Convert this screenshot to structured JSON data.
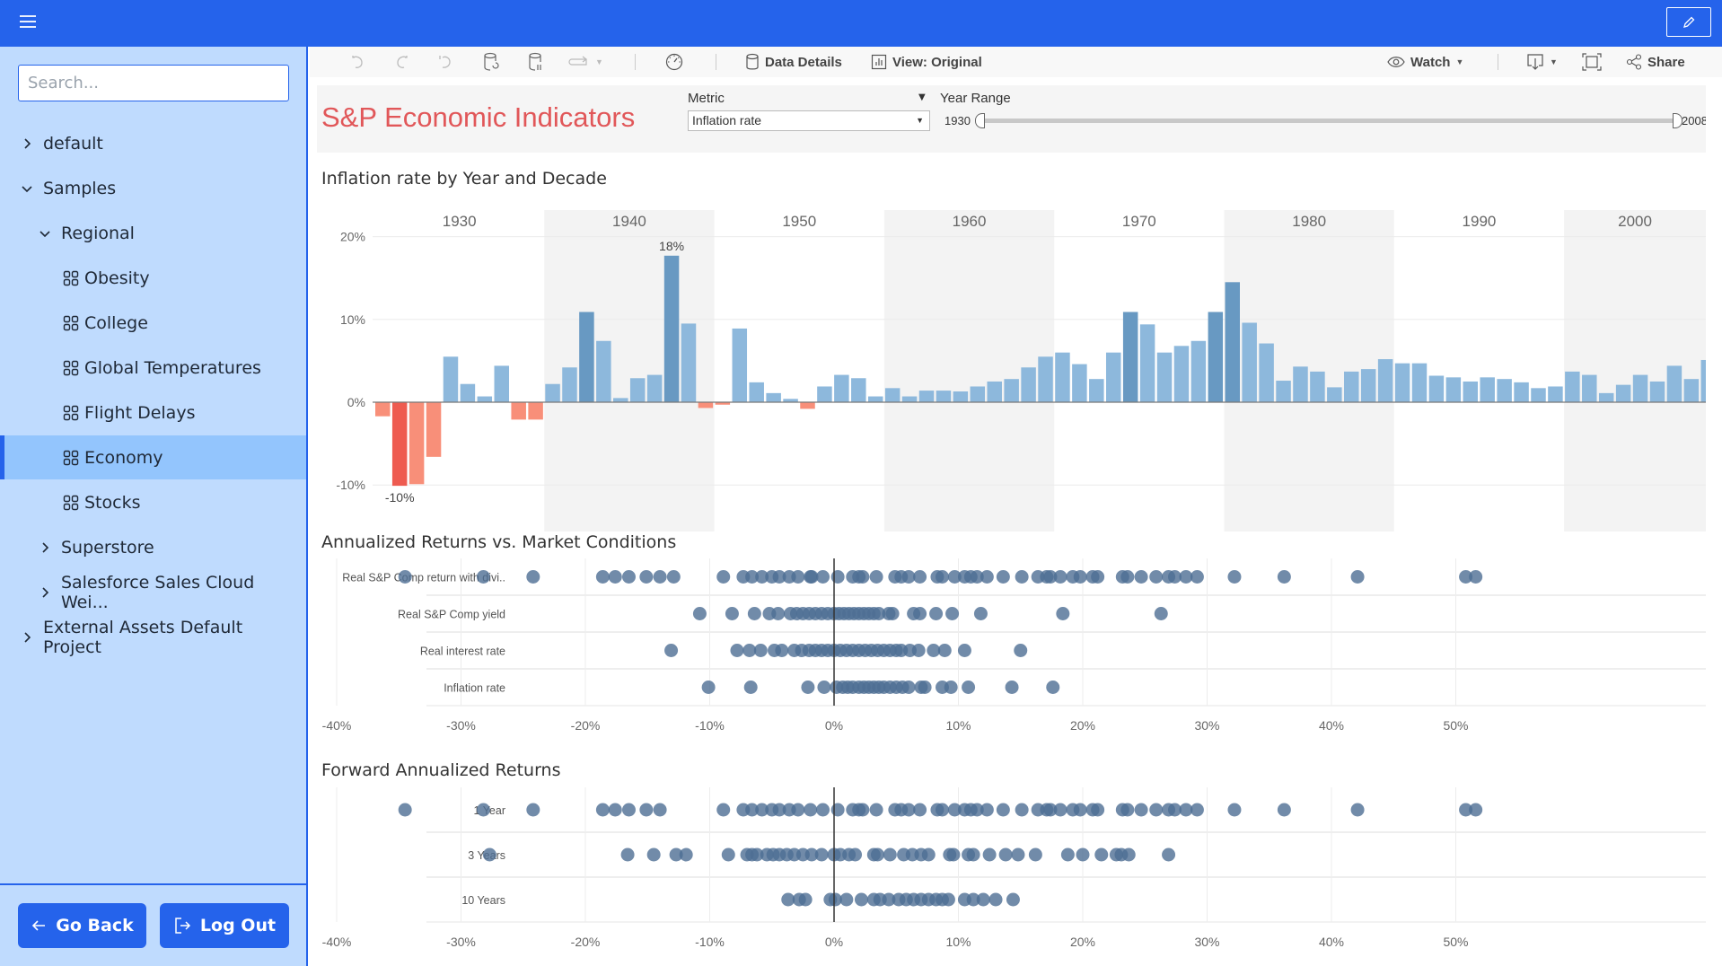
{
  "topbar": {
    "menu_icon": "hamburger-icon",
    "edit_icon": "pencil-icon"
  },
  "sidebar": {
    "search_placeholder": "Search...",
    "search_value": "",
    "tree": [
      {
        "label": "default",
        "level": 0,
        "icon": "chevron-right",
        "active": false
      },
      {
        "label": "Samples",
        "level": 0,
        "icon": "chevron-down",
        "active": false
      },
      {
        "label": "Regional",
        "level": 1,
        "icon": "chevron-down",
        "active": false
      },
      {
        "label": "Obesity",
        "level": 2,
        "icon": "dashboard-grid",
        "active": false
      },
      {
        "label": "College",
        "level": 2,
        "icon": "dashboard-grid",
        "active": false
      },
      {
        "label": "Global Temperatures",
        "level": 2,
        "icon": "dashboard-grid",
        "active": false
      },
      {
        "label": "Flight Delays",
        "level": 2,
        "icon": "dashboard-grid",
        "active": false
      },
      {
        "label": "Economy",
        "level": 2,
        "icon": "dashboard-grid",
        "active": true
      },
      {
        "label": "Stocks",
        "level": 2,
        "icon": "dashboard-grid",
        "active": false
      },
      {
        "label": "Superstore",
        "level": 1,
        "icon": "chevron-right",
        "active": false
      },
      {
        "label": "Salesforce Sales Cloud Wei...",
        "level": 1,
        "icon": "chevron-right",
        "active": false
      },
      {
        "label": "External Assets Default Project",
        "level": 0,
        "icon": "chevron-right",
        "active": false
      }
    ],
    "go_back_label": "Go Back",
    "log_out_label": "Log Out"
  },
  "toolbar": {
    "data_details_label": "Data Details",
    "view_label": "View: Original",
    "watch_label": "Watch",
    "share_label": "Share"
  },
  "dashboard": {
    "title": "S&P Economic Indicators",
    "metric_label": "Metric",
    "metric_value": "Inflation rate",
    "year_range_label": "Year Range",
    "year_min": "1930",
    "year_max": "2008"
  },
  "colors": {
    "brand": "#2563EB",
    "sidebar_bg": "#BFDBFE",
    "sidebar_active": "#93C5FD",
    "title_red": "#E15759",
    "bar_pos": "#8DB8DC",
    "bar_pos_high": "#6899C2",
    "bar_neg": "#F88F79",
    "bar_neg_low": "#EE5B50",
    "dot": "#4E6E93"
  },
  "chart_data": [
    {
      "type": "bar",
      "title": "Inflation rate by Year and Decade",
      "xlabel": "",
      "ylabel": "",
      "ylim": [
        -11,
        22
      ],
      "yticks": [
        "20%",
        "10%",
        "0%",
        "-10%"
      ],
      "ytick_values": [
        20,
        10,
        0,
        -10
      ],
      "decades": [
        "1930",
        "1940",
        "1950",
        "1960",
        "1970",
        "1980",
        "1990",
        "2000"
      ],
      "annotations": [
        {
          "year": 1947,
          "label": "18%"
        },
        {
          "year": 1931,
          "label": "-10%"
        }
      ],
      "start_year": 1930,
      "values": [
        -1.7,
        -10.1,
        -9.9,
        -6.6,
        5.5,
        2.2,
        0.7,
        4.4,
        -2.1,
        -2.1,
        2.2,
        4.2,
        10.9,
        7.4,
        0.5,
        2.9,
        3.3,
        17.7,
        9.5,
        -0.7,
        -0.3,
        8.9,
        2.4,
        1.1,
        0.4,
        -0.8,
        1.9,
        3.3,
        2.9,
        0.7,
        1.7,
        0.7,
        1.4,
        1.4,
        1.3,
        1.9,
        2.5,
        2.8,
        4.2,
        5.5,
        6.0,
        4.6,
        2.8,
        6.0,
        10.9,
        9.4,
        6.0,
        6.8,
        7.4,
        10.9,
        14.5,
        9.6,
        7.1,
        2.6,
        4.3,
        3.7,
        1.8,
        3.7,
        4.0,
        5.2,
        4.7,
        4.7,
        3.2,
        3.0,
        2.5,
        3.0,
        2.8,
        2.4,
        1.7,
        1.9,
        3.7,
        3.3,
        1.1,
        2.1,
        3.3,
        2.5,
        4.4,
        2.8,
        5.1
      ]
    },
    {
      "type": "scatter",
      "title": "Annualized Returns vs. Market Conditions",
      "xlabel": "",
      "xlim": [
        -42,
        55
      ],
      "xticks": [
        "-40%",
        "-30%",
        "-20%",
        "-10%",
        "0%",
        "10%",
        "20%",
        "30%",
        "40%",
        "50%"
      ],
      "xtick_values": [
        -40,
        -30,
        -20,
        -10,
        0,
        10,
        20,
        30,
        40,
        50
      ],
      "series": [
        {
          "name": "Real S&P Comp return with divi..",
          "values": [
            -34.5,
            -28.2,
            -24.2,
            -18.6,
            -17.6,
            -16.5,
            -15.1,
            -14.0,
            -12.9,
            -8.9,
            -7.3,
            -6.6,
            -5.8,
            -5.0,
            -4.4,
            -3.6,
            -2.9,
            -1.9,
            -1.8,
            -0.9,
            0.3,
            1.5,
            2.0,
            2.3,
            3.4,
            4.9,
            5.4,
            6.0,
            6.9,
            8.3,
            8.7,
            9.7,
            10.5,
            11.0,
            11.5,
            12.3,
            13.6,
            15.1,
            16.4,
            17.1,
            17.4,
            18.2,
            19.2,
            19.8,
            20.8,
            21.2,
            23.2,
            23.6,
            24.7,
            25.9,
            26.9,
            27.4,
            28.3,
            29.2,
            32.2,
            36.2,
            42.1,
            50.8,
            51.6
          ]
        },
        {
          "name": "Real S&P Comp yield",
          "values": [
            -10.8,
            -8.2,
            -6.4,
            -5.2,
            -4.5,
            -3.5,
            -3.0,
            -2.5,
            -2.0,
            -1.5,
            -1.0,
            -0.5,
            0.0,
            0.4,
            0.8,
            1.2,
            1.6,
            2.0,
            2.4,
            2.8,
            3.2,
            3.6,
            4.4,
            4.7,
            6.4,
            6.9,
            8.2,
            9.5,
            11.8,
            18.4,
            26.3
          ]
        },
        {
          "name": "Real interest rate",
          "values": [
            -13.1,
            -7.8,
            -6.8,
            -5.9,
            -4.8,
            -4.2,
            -3.2,
            -2.6,
            -2.0,
            -1.5,
            -1.0,
            -0.5,
            0.0,
            0.5,
            1.0,
            1.5,
            2.0,
            2.5,
            3.0,
            3.5,
            4.0,
            4.5,
            5.0,
            5.4,
            6.1,
            6.8,
            8.0,
            8.9,
            10.5,
            15.0
          ]
        },
        {
          "name": "Inflation rate",
          "values": [
            -10.1,
            -6.7,
            -2.1,
            -0.8,
            0.2,
            0.7,
            1.1,
            1.5,
            2.0,
            2.4,
            2.8,
            3.2,
            3.6,
            4.0,
            4.5,
            5.0,
            5.5,
            6.0,
            7.0,
            7.3,
            8.7,
            9.4,
            10.8,
            14.3,
            17.6
          ]
        }
      ]
    },
    {
      "type": "scatter",
      "title": "Forward Annualized Returns",
      "xlabel": "",
      "xlim": [
        -42,
        55
      ],
      "xticks": [
        "-40%",
        "-30%",
        "-20%",
        "-10%",
        "0%",
        "10%",
        "20%",
        "30%",
        "40%",
        "50%"
      ],
      "xtick_values": [
        -40,
        -30,
        -20,
        -10,
        0,
        10,
        20,
        30,
        40,
        50
      ],
      "series": [
        {
          "name": "1 Year",
          "values": [
            -34.5,
            -28.2,
            -24.2,
            -18.6,
            -17.6,
            -16.5,
            -15.1,
            -14.0,
            -8.9,
            -7.3,
            -6.6,
            -5.8,
            -5.0,
            -4.4,
            -3.6,
            -2.9,
            -1.9,
            -0.9,
            0.3,
            1.5,
            2.0,
            2.3,
            3.4,
            4.9,
            5.4,
            6.0,
            6.9,
            8.3,
            8.7,
            9.7,
            10.5,
            11.0,
            11.5,
            12.3,
            13.6,
            15.1,
            16.4,
            17.1,
            17.4,
            18.2,
            19.2,
            19.8,
            20.8,
            21.2,
            23.2,
            23.6,
            24.7,
            25.9,
            26.9,
            27.4,
            28.3,
            29.2,
            32.2,
            36.2,
            42.1,
            50.8,
            51.6
          ]
        },
        {
          "name": "3 Years",
          "values": [
            -27.7,
            -16.6,
            -14.5,
            -12.7,
            -11.9,
            -8.5,
            -7.0,
            -6.6,
            -6.2,
            -5.4,
            -4.9,
            -4.4,
            -3.8,
            -3.2,
            -2.5,
            -1.8,
            -1.0,
            0.0,
            0.5,
            1.2,
            1.7,
            3.2,
            3.5,
            4.5,
            5.6,
            6.3,
            7.0,
            7.6,
            9.3,
            9.6,
            10.8,
            11.2,
            12.5,
            13.8,
            14.8,
            16.2,
            18.8,
            20.0,
            21.5,
            22.7,
            23.1,
            23.7,
            26.9
          ]
        },
        {
          "name": "10 Years",
          "values": [
            -3.7,
            -2.8,
            -2.3,
            -0.3,
            0.1,
            1.0,
            2.2,
            3.2,
            3.7,
            4.4,
            5.2,
            5.8,
            6.4,
            7.0,
            7.6,
            8.2,
            8.7,
            9.2,
            10.5,
            11.2,
            12.0,
            13.0,
            14.4
          ]
        }
      ]
    }
  ]
}
